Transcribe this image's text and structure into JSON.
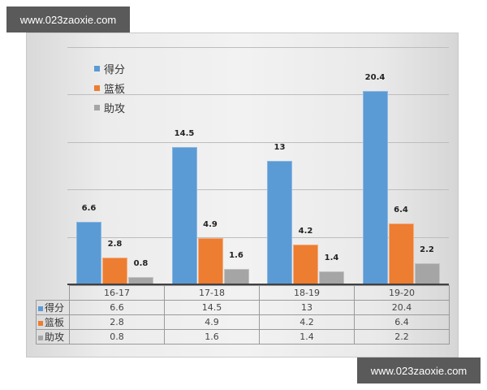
{
  "watermark": {
    "top": "www.023zaoxie.com",
    "bottom": "www.023zaoxie.com"
  },
  "legend": [
    {
      "label": "得分",
      "color": "#5b9bd5"
    },
    {
      "label": "篮板",
      "color": "#ed7d31"
    },
    {
      "label": "助攻",
      "color": "#a5a5a5"
    }
  ],
  "table": {
    "headers": [
      "16-17",
      "17-18",
      "18-19",
      "19-20"
    ],
    "rows": [
      {
        "label": "得分",
        "values": [
          "6.6",
          "14.5",
          "13",
          "20.4"
        ]
      },
      {
        "label": "篮板",
        "values": [
          "2.8",
          "4.9",
          "4.2",
          "6.4"
        ]
      },
      {
        "label": "助攻",
        "values": [
          "0.8",
          "1.6",
          "1.4",
          "2.2"
        ]
      }
    ]
  },
  "chart_data": {
    "type": "bar",
    "title": "",
    "xlabel": "",
    "ylabel": "",
    "categories": [
      "16-17",
      "17-18",
      "18-19",
      "19-20"
    ],
    "series": [
      {
        "name": "得分",
        "values": [
          6.6,
          14.5,
          13,
          20.4
        ],
        "color": "#5b9bd5"
      },
      {
        "name": "篮板",
        "values": [
          2.8,
          4.9,
          4.2,
          6.4
        ],
        "color": "#ed7d31"
      },
      {
        "name": "助攻",
        "values": [
          0.8,
          1.6,
          1.4,
          2.2
        ],
        "color": "#a5a5a5"
      }
    ],
    "ylim": [
      0,
      25
    ],
    "gridlines": [
      5,
      10,
      15,
      20,
      25
    ],
    "grid": true,
    "data_labels": true,
    "legend_position": "top-left-inside",
    "data_table": true
  }
}
